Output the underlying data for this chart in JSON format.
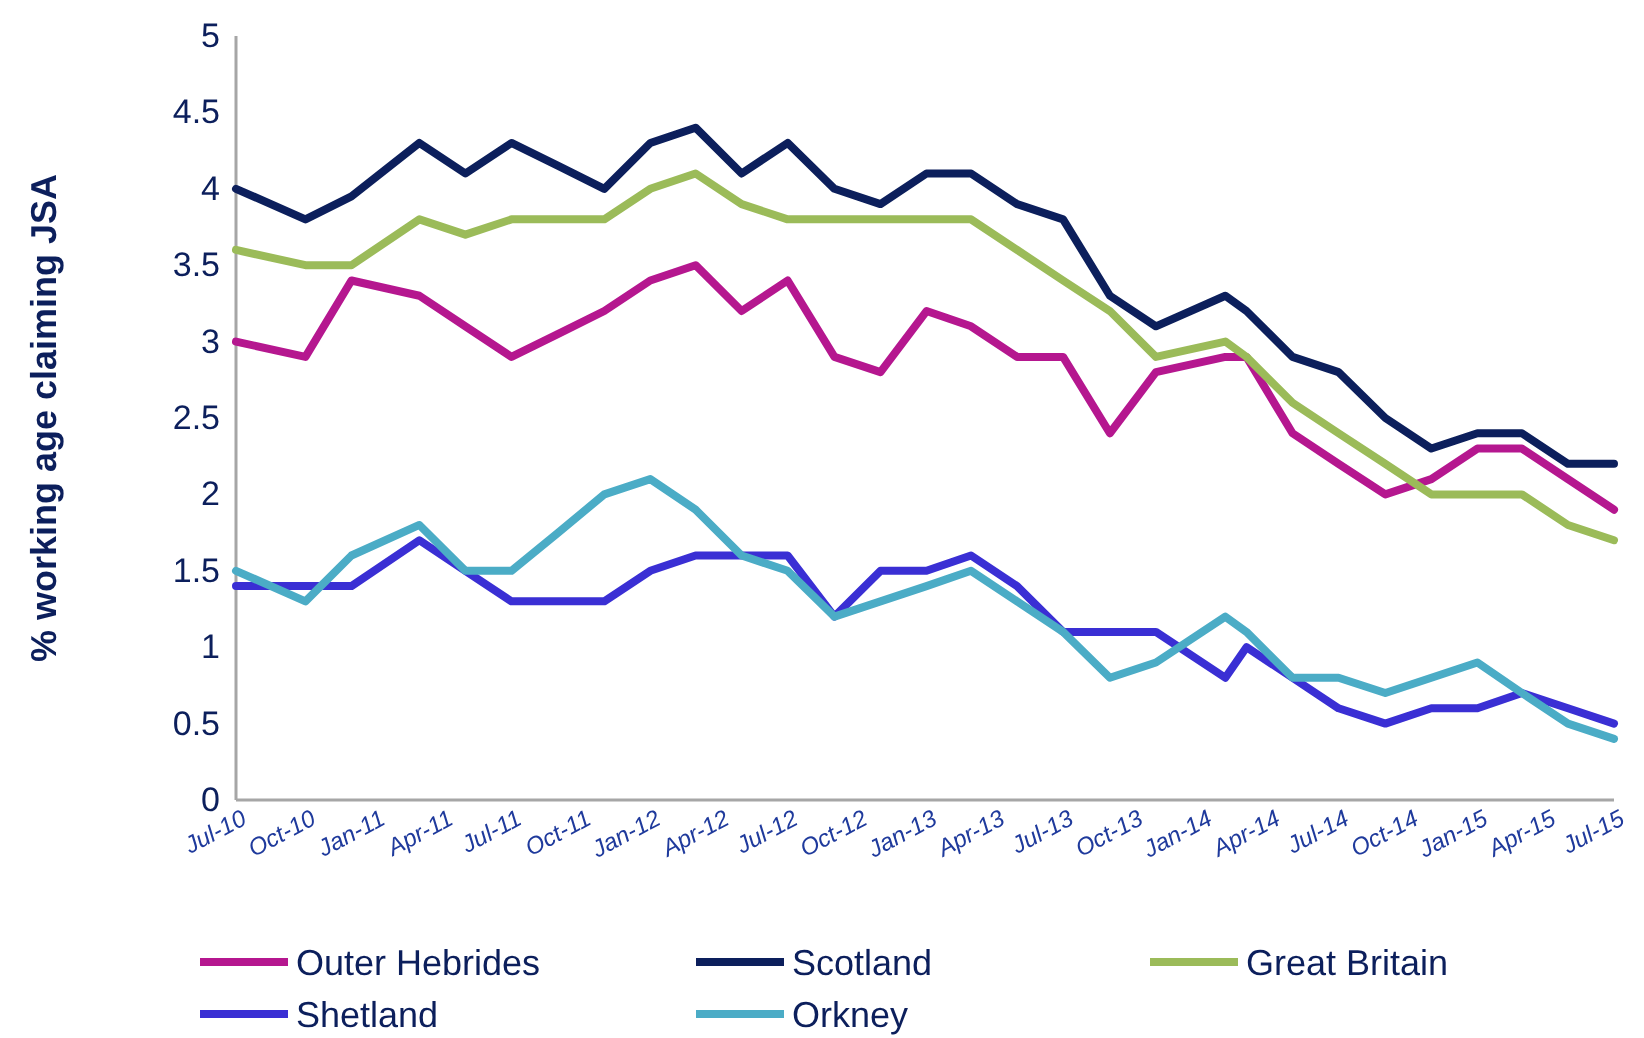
{
  "chart_data": {
    "type": "line",
    "ylabel": "% working age claiming JSA",
    "x": [
      "2010-07",
      "2010-10",
      "2010-12",
      "2011-03",
      "2011-05",
      "2011-07",
      "2011-09",
      "2011-11",
      "2012-01",
      "2012-03",
      "2012-05",
      "2012-07",
      "2012-09",
      "2012-11",
      "2013-01",
      "2013-03",
      "2013-05",
      "2013-07",
      "2013-09",
      "2013-11",
      "2014-02",
      "2014-03",
      "2014-05",
      "2014-07",
      "2014-09",
      "2014-11",
      "2015-01",
      "2015-03",
      "2015-05",
      "2015-07"
    ],
    "series": [
      {
        "name": "Outer Hebrides",
        "color": "#b5178f",
        "values": [
          3.0,
          2.9,
          3.4,
          3.3,
          3.1,
          2.9,
          3.05,
          3.2,
          3.4,
          3.5,
          3.2,
          3.4,
          2.9,
          2.8,
          3.2,
          3.1,
          2.9,
          2.9,
          2.4,
          2.8,
          2.9,
          2.9,
          2.4,
          2.2,
          2.0,
          2.1,
          2.3,
          2.3,
          2.1,
          1.9
        ]
      },
      {
        "name": "Scotland",
        "color": "#0c1f5c",
        "values": [
          4.0,
          3.8,
          3.95,
          4.3,
          4.1,
          4.3,
          4.15,
          4.0,
          4.3,
          4.4,
          4.1,
          4.3,
          4.0,
          3.9,
          4.1,
          4.1,
          3.9,
          3.8,
          3.3,
          3.1,
          3.3,
          3.2,
          2.9,
          2.8,
          2.5,
          2.3,
          2.4,
          2.4,
          2.2,
          2.2
        ]
      },
      {
        "name": "Great Britain",
        "color": "#9bbb59",
        "values": [
          3.6,
          3.5,
          3.5,
          3.8,
          3.7,
          3.8,
          3.8,
          3.8,
          4.0,
          4.1,
          3.9,
          3.8,
          3.8,
          3.8,
          3.8,
          3.8,
          3.6,
          3.4,
          3.2,
          2.9,
          3.0,
          2.9,
          2.6,
          2.4,
          2.2,
          2.0,
          2.0,
          2.0,
          1.8,
          1.7
        ]
      },
      {
        "name": "Shetland",
        "color": "#3a2fd4",
        "values": [
          1.4,
          1.4,
          1.4,
          1.7,
          1.5,
          1.3,
          1.3,
          1.3,
          1.5,
          1.6,
          1.6,
          1.6,
          1.2,
          1.5,
          1.5,
          1.6,
          1.4,
          1.1,
          1.1,
          1.1,
          0.8,
          1.0,
          0.8,
          0.6,
          0.5,
          0.6,
          0.6,
          0.7,
          0.6,
          0.5
        ]
      },
      {
        "name": "Orkney",
        "color": "#4bacc6",
        "values": [
          1.5,
          1.3,
          1.6,
          1.8,
          1.5,
          1.5,
          1.75,
          2.0,
          2.1,
          1.9,
          1.6,
          1.5,
          1.2,
          1.3,
          1.4,
          1.5,
          1.3,
          1.1,
          0.8,
          0.9,
          1.2,
          1.1,
          0.8,
          0.8,
          0.7,
          0.8,
          0.9,
          0.7,
          0.5,
          0.4
        ]
      }
    ],
    "xlim": [
      "2010-07",
      "2015-07"
    ],
    "xticks": [
      {
        "value": "2010-07",
        "label": "Jul-10"
      },
      {
        "value": "2010-10",
        "label": "Oct-10"
      },
      {
        "value": "2011-01",
        "label": "Jan-11"
      },
      {
        "value": "2011-04",
        "label": "Apr-11"
      },
      {
        "value": "2011-07",
        "label": "Jul-11"
      },
      {
        "value": "2011-10",
        "label": "Oct-11"
      },
      {
        "value": "2012-01",
        "label": "Jan-12"
      },
      {
        "value": "2012-04",
        "label": "Apr-12"
      },
      {
        "value": "2012-07",
        "label": "Jul-12"
      },
      {
        "value": "2012-10",
        "label": "Oct-12"
      },
      {
        "value": "2013-01",
        "label": "Jan-13"
      },
      {
        "value": "2013-04",
        "label": "Apr-13"
      },
      {
        "value": "2013-07",
        "label": "Jul-13"
      },
      {
        "value": "2013-10",
        "label": "Oct-13"
      },
      {
        "value": "2014-01",
        "label": "Jan-14"
      },
      {
        "value": "2014-04",
        "label": "Apr-14"
      },
      {
        "value": "2014-07",
        "label": "Jul-14"
      },
      {
        "value": "2014-10",
        "label": "Oct-14"
      },
      {
        "value": "2015-01",
        "label": "Jan-15"
      },
      {
        "value": "2015-04",
        "label": "Apr-15"
      },
      {
        "value": "2015-07",
        "label": "Jul-15"
      }
    ],
    "ylim": [
      0,
      5
    ],
    "yticks": [
      0,
      0.5,
      1,
      1.5,
      2,
      2.5,
      3,
      3.5,
      4,
      4.5,
      5
    ],
    "grid": false,
    "legend": "bottom",
    "marker": "none",
    "line_style": "solid"
  }
}
